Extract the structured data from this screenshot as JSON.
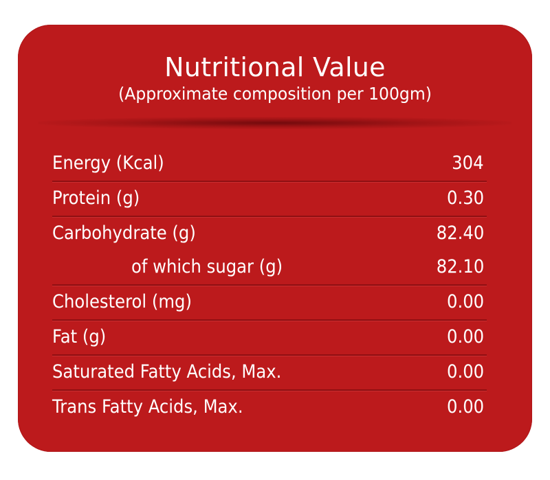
{
  "header": {
    "title": "Nutritional Value",
    "subtitle": "(Approximate composition per 100gm)"
  },
  "colors": {
    "panel_background": "#bc1a1c",
    "divider": "#8f0f12",
    "text": "#ffffff",
    "page_background": "#ffffff"
  },
  "rows": [
    {
      "label": "Energy (Kcal)",
      "value": "304"
    },
    {
      "label": "Protein (g)",
      "value": "0.30"
    },
    {
      "label": "Carbohydrate (g)",
      "value": "82.40"
    },
    {
      "label": "of which sugar (g)",
      "value": "82.10"
    },
    {
      "label": "Cholesterol (mg)",
      "value": "0.00"
    },
    {
      "label": "Fat (g)",
      "value": "0.00"
    },
    {
      "label": "Saturated Fatty Acids, Max.",
      "value": "0.00"
    },
    {
      "label": "Trans Fatty Acids, Max.",
      "value": "0.00"
    }
  ]
}
